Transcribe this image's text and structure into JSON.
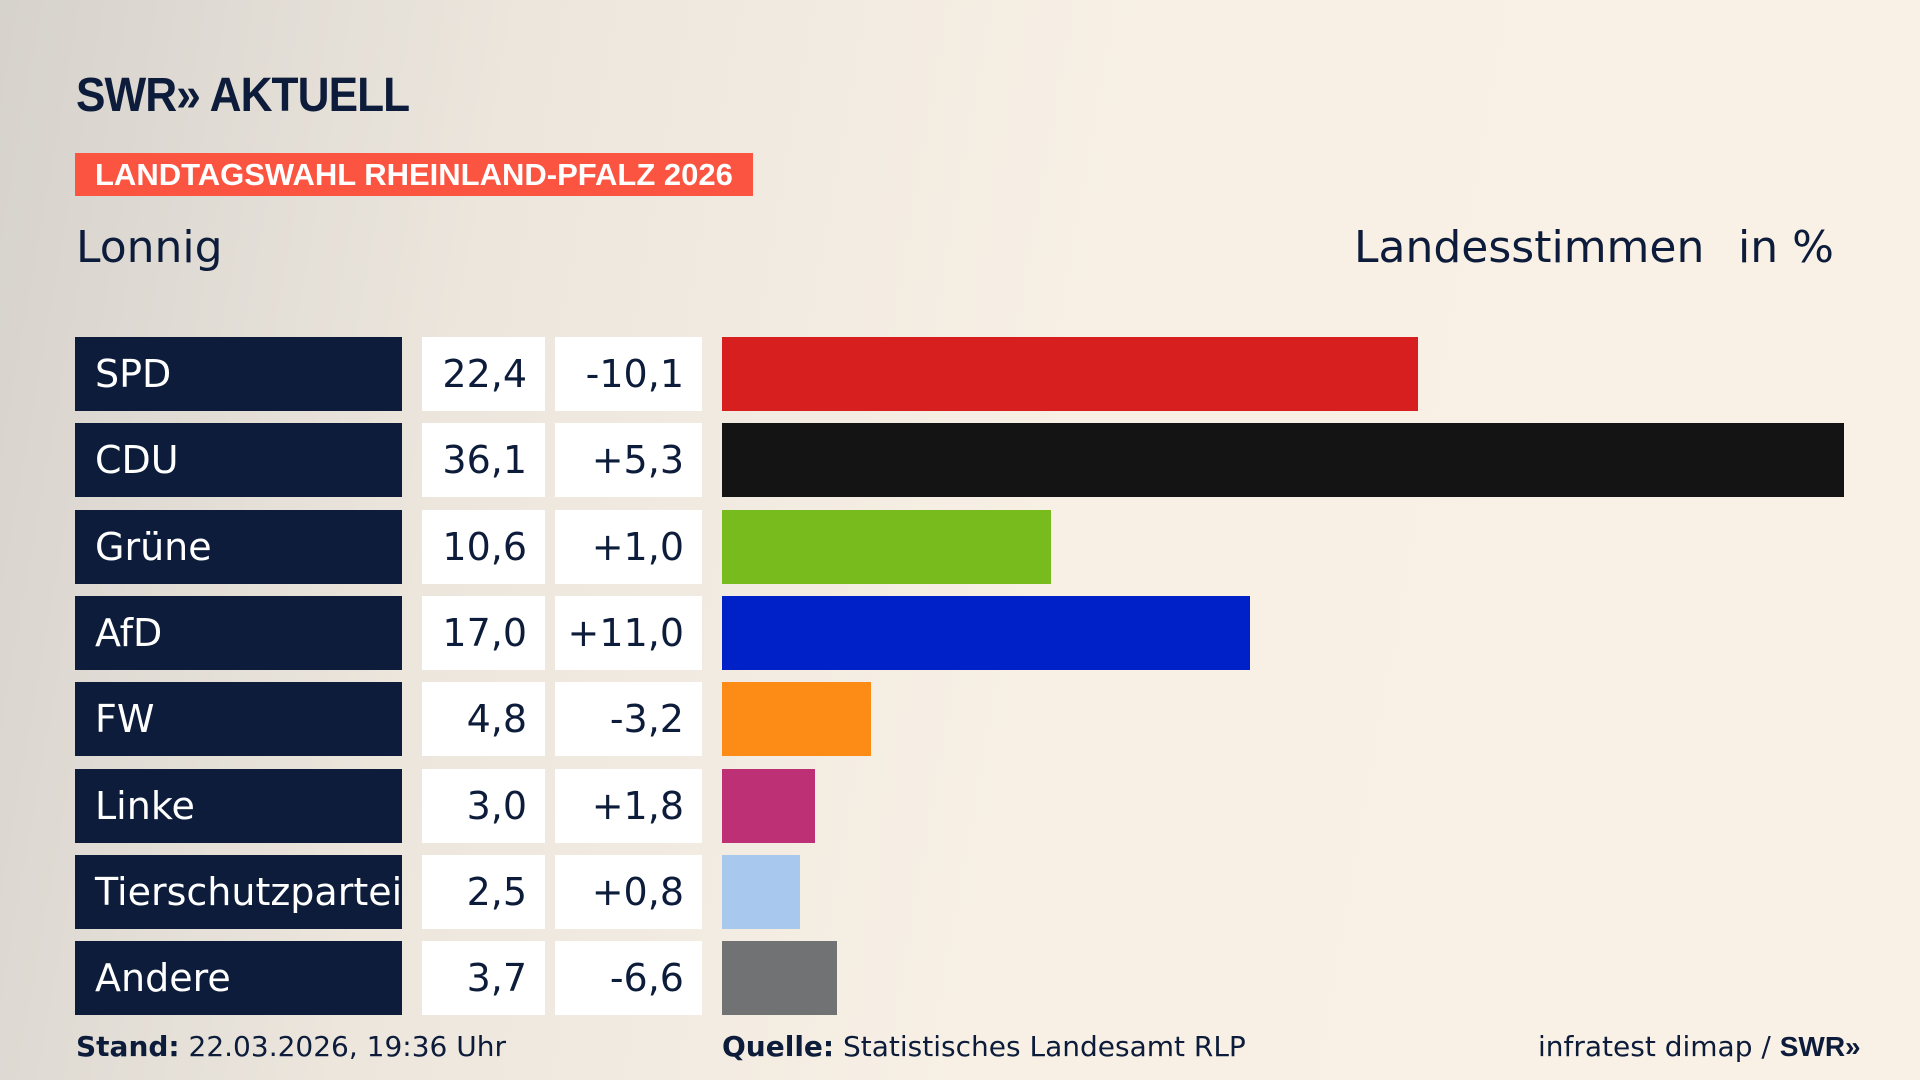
{
  "header": {
    "logo": "SWR» AKTUELL",
    "banner": "LANDTAGSWAHL RHEINLAND-PFALZ 2026",
    "location": "Lonnig",
    "measure": "Landesstimmen",
    "unit": "in %"
  },
  "chart_data": {
    "type": "bar",
    "orientation": "horizontal",
    "title": "Lonnig",
    "ylabel": "Landesstimmen",
    "unit": "in %",
    "categories": [
      "SPD",
      "CDU",
      "Grüne",
      "AfD",
      "FW",
      "Linke",
      "Tierschutzpartei",
      "Andere"
    ],
    "values": [
      22.4,
      36.1,
      10.6,
      17.0,
      4.8,
      3.0,
      2.5,
      3.7
    ],
    "value_labels": [
      "22,4",
      "36,1",
      "10,6",
      "17,0",
      "4,8",
      "3,0",
      "2,5",
      "3,7"
    ],
    "change_labels": [
      "-10,1",
      "+5,3",
      "+1,0",
      "+11,0",
      "-3,2",
      "+1,8",
      "+0,8",
      "-6,6"
    ],
    "changes": [
      -10.1,
      5.3,
      1.0,
      11.0,
      -3.2,
      1.8,
      0.8,
      -6.6
    ],
    "colors": [
      "#d81f20",
      "#141414",
      "#77bc1c",
      "#0020c8",
      "#fd8c17",
      "#bd3076",
      "#a9c8ee",
      "#717273"
    ],
    "xlim": [
      0,
      36.1
    ]
  },
  "footer": {
    "stand_label": "Stand:",
    "stand_value": "22.03.2026, 19:36 Uhr",
    "source_label": "Quelle:",
    "source_value": "Statistisches Landesamt RLP",
    "credit": "infratest dimap / ",
    "credit_logo": "SWR»"
  }
}
